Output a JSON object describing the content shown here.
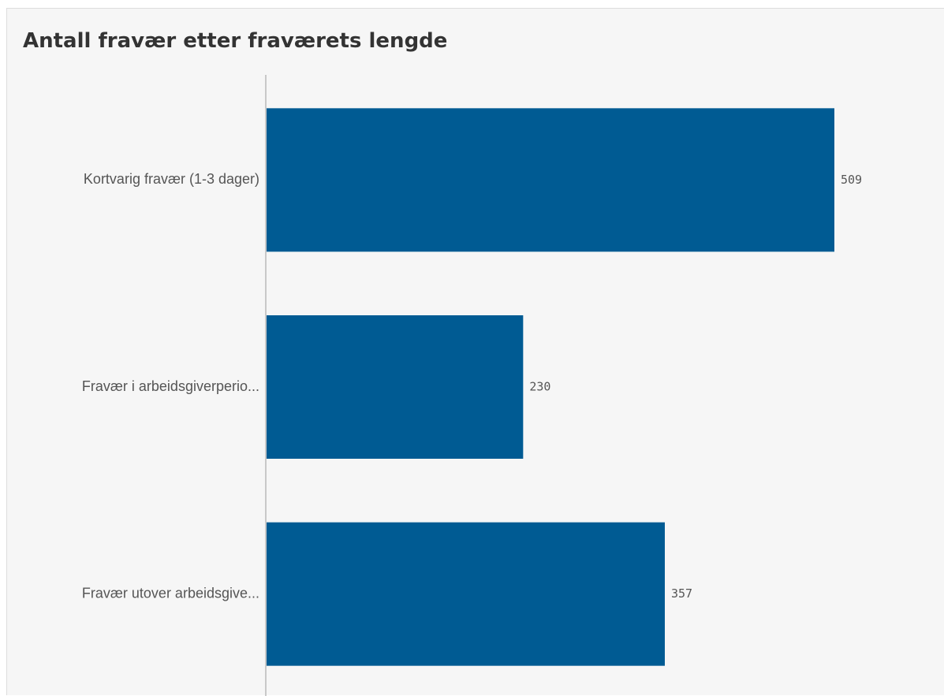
{
  "chart_data": {
    "type": "bar",
    "orientation": "horizontal",
    "title": "Antall fravær etter fraværets lengde",
    "categories": [
      "Kortvarig fravær (1-3 dager)",
      "Fravær i arbeidsgiverperio...",
      "Fravær utover arbeidsgive..."
    ],
    "values": [
      509,
      230,
      357
    ],
    "data_labels": [
      "509",
      "230",
      "357"
    ],
    "xlim": [
      0,
      509
    ],
    "grid": false,
    "legend": "none",
    "bar_color": "#005b93"
  }
}
